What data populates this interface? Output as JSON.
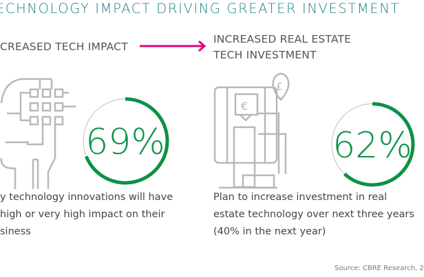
{
  "title": "ECHNOLOGY IMPACT DRIVING GREATER INVESTMENT",
  "left": {
    "heading": "CREASED TECH IMPACT",
    "percent_label": "69%",
    "percent_value": 69,
    "description": [
      "y technology innovations will have",
      "high or very high impact on their",
      "siness"
    ],
    "icon": "circuit-head-icon"
  },
  "right": {
    "heading": [
      "INCREASED REAL ESTATE",
      "TECH INVESTMENT"
    ],
    "percent_label": "62%",
    "percent_value": 62,
    "description": [
      "Plan to increase investment in real",
      "estate technology over next three years",
      "(40% in the next year)"
    ],
    "icon": "building-currency-icon",
    "pound_symbol": "£",
    "euro_symbol": "€"
  },
  "source": "Source: CBRE Research, 2",
  "colors": {
    "title": "#1f7f86",
    "arrow": "#e6007e",
    "gauge": "#0a9245",
    "icon": "#b8b8b8"
  }
}
